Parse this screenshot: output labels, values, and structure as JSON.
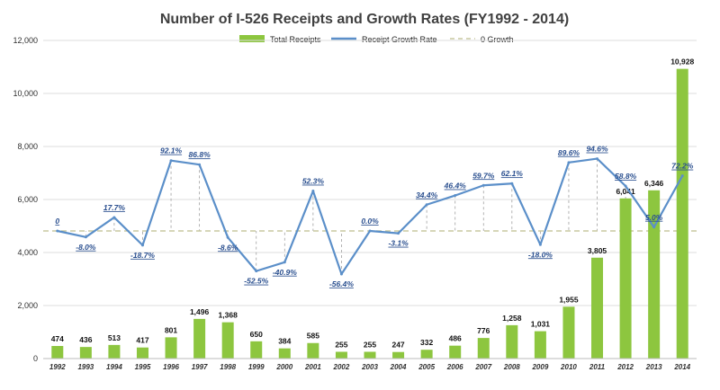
{
  "chart_data": {
    "type": "bar+line",
    "title": "Number of I-526 Receipts  and Growth Rates (FY1992 - 2014)",
    "categories": [
      "1992",
      "1993",
      "1994",
      "1995",
      "1996",
      "1997",
      "1998",
      "1999",
      "2000",
      "2001",
      "2002",
      "2003",
      "2004",
      "2005",
      "2006",
      "2007",
      "2008",
      "2009",
      "2010",
      "2011",
      "2012",
      "2013",
      "2014"
    ],
    "series": [
      {
        "name": "Total Receipts",
        "type": "bar",
        "axis": "left",
        "color": "#8dc63f",
        "values": [
          474,
          436,
          513,
          417,
          801,
          1496,
          1368,
          650,
          384,
          585,
          255,
          255,
          247,
          332,
          486,
          776,
          1258,
          1031,
          1955,
          3805,
          6041,
          6346,
          10928
        ],
        "labels": [
          "474",
          "436",
          "513",
          "417",
          "801",
          "1,496",
          "1,368",
          "650",
          "384",
          "585",
          "255",
          "255",
          "247",
          "332",
          "486",
          "776",
          "1,258",
          "1,031",
          "1,955",
          "3,805",
          "6,041",
          "6,346",
          "10,928"
        ]
      },
      {
        "name": "Receipt Growth Rate",
        "type": "line",
        "axis": "right",
        "color": "#5b8fc9",
        "values": [
          0,
          -8.0,
          17.7,
          -18.7,
          92.1,
          86.8,
          -8.6,
          -52.5,
          -40.9,
          52.3,
          -56.4,
          0.0,
          -3.1,
          34.4,
          46.4,
          59.7,
          62.1,
          -18.0,
          89.6,
          94.6,
          58.8,
          5.0,
          72.2
        ],
        "labels": [
          "0",
          "-8.0%",
          "17.7%",
          "-18.7%",
          "92.1%",
          "86.8%",
          "-8.6%",
          "-52.5%",
          "-40.9%",
          "52.3%",
          "-56.4%",
          "0.0%",
          "-3.1%",
          "34.4%",
          "46.4%",
          "59.7%",
          "62.1%",
          "-18.0%",
          "89.6%",
          "94.6%",
          "58.8%",
          "5.0%",
          "72.2%"
        ]
      },
      {
        "name": "0 Growth",
        "type": "reference-line",
        "axis": "right",
        "value": 0,
        "color": "#c8c8a0"
      }
    ],
    "yticks": [
      "0",
      "2,000",
      "4,000",
      "6,000",
      "8,000",
      "10,000",
      "12,000"
    ],
    "ylim": [
      0,
      12000
    ],
    "grid": true,
    "legend": "top"
  }
}
